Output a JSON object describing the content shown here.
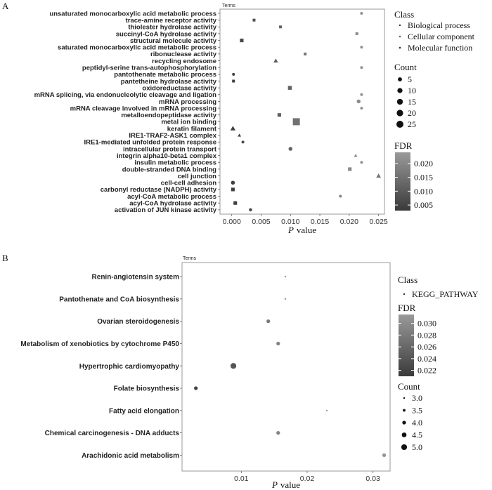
{
  "chart_data": [
    {
      "type": "scatter",
      "panel_label": "A",
      "title": "Terms",
      "xlabel_italic": "P",
      "xlabel_rest": "value",
      "xlim": [
        -0.002,
        0.026
      ],
      "xticks": [
        0.0,
        0.005,
        0.01,
        0.015,
        0.02,
        0.025
      ],
      "xtick_labels": [
        "0.000",
        "0.005",
        "0.010",
        "0.015",
        "0.020",
        "0.025"
      ],
      "categories": [
        "unsaturated monocarboxylic acid metabolic process",
        "trace-amine receptor activity",
        "thiolester hydrolase activity",
        "succinyl-CoA hydrolase activity",
        "structural molecule activity",
        "saturated monocarboxylic acid metabolic process",
        "ribonuclease activity",
        "recycling endosome",
        "peptidyl-serine trans-autophosphorylation",
        "pantothenate metabolic process",
        "pantetheine hydrolase activity",
        "oxidoreductase activity",
        "mRNA splicing, via endonucleolytic cleavage and ligation",
        "mRNA processing",
        "mRNA cleavage involved in mRNA processing",
        "metalloendopeptidase activity",
        "metal ion binding",
        "keratin filament",
        "IRE1-TRAF2-ASK1 complex",
        "IRE1-mediated unfolded protein response",
        "intracellular protein transport",
        "integrin alpha10-beta1 complex",
        "insulin metabolic process",
        "double-stranded DNA binding",
        "cell junction",
        "cell-cell adhesion",
        "carbonyl reductase (NADPH) activity",
        "acyl-CoA metabolic process",
        "acyl-CoA hydrolase activity",
        "activation of JUN kinase activity"
      ],
      "points": [
        {
          "term": "unsaturated monocarboxylic acid metabolic process",
          "p": 0.0221,
          "count": 1,
          "fdr": 0.022,
          "class": "Biological process"
        },
        {
          "term": "trace-amine receptor activity",
          "p": 0.0038,
          "count": 1,
          "fdr": 0.008,
          "class": "Molecular function"
        },
        {
          "term": "thiolester hydrolase activity",
          "p": 0.0083,
          "count": 1,
          "fdr": 0.012,
          "class": "Molecular function"
        },
        {
          "term": "succinyl-CoA hydrolase activity",
          "p": 0.0213,
          "count": 1,
          "fdr": 0.021,
          "class": "Molecular function"
        },
        {
          "term": "structural molecule activity",
          "p": 0.0017,
          "count": 3,
          "fdr": 0.006,
          "class": "Molecular function"
        },
        {
          "term": "saturated monocarboxylic acid metabolic process",
          "p": 0.0221,
          "count": 1,
          "fdr": 0.022,
          "class": "Biological process"
        },
        {
          "term": "ribonuclease activity",
          "p": 0.0125,
          "count": 1,
          "fdr": 0.016,
          "class": "Molecular function"
        },
        {
          "term": "recycling endosome",
          "p": 0.0075,
          "count": 3,
          "fdr": 0.01,
          "class": "Cellular component"
        },
        {
          "term": "peptidyl-serine trans-autophosphorylation",
          "p": 0.0221,
          "count": 1,
          "fdr": 0.022,
          "class": "Biological process"
        },
        {
          "term": "pantothenate metabolic process",
          "p": 0.0003,
          "count": 1,
          "fdr": 0.004,
          "class": "Biological process"
        },
        {
          "term": "pantetheine hydrolase activity",
          "p": 0.0003,
          "count": 1,
          "fdr": 0.004,
          "class": "Molecular function"
        },
        {
          "term": "oxidoreductase activity",
          "p": 0.0099,
          "count": 4,
          "fdr": 0.012,
          "class": "Molecular function"
        },
        {
          "term": "mRNA splicing, via endonucleolytic cleavage and ligation",
          "p": 0.0221,
          "count": 1,
          "fdr": 0.022,
          "class": "Biological process"
        },
        {
          "term": "mRNA processing",
          "p": 0.0216,
          "count": 4,
          "fdr": 0.021,
          "class": "Biological process"
        },
        {
          "term": "mRNA cleavage involved in mRNA processing",
          "p": 0.0221,
          "count": 1,
          "fdr": 0.022,
          "class": "Biological process"
        },
        {
          "term": "metalloendopeptidase activity",
          "p": 0.0081,
          "count": 3,
          "fdr": 0.011,
          "class": "Molecular function"
        },
        {
          "term": "metal ion binding",
          "p": 0.011,
          "count": 25,
          "fdr": 0.015,
          "class": "Molecular function"
        },
        {
          "term": "keratin filament",
          "p": 0.0002,
          "count": 5,
          "fdr": 0.004,
          "class": "Cellular component"
        },
        {
          "term": "IRE1-TRAF2-ASK1 complex",
          "p": 0.0013,
          "count": 1,
          "fdr": 0.005,
          "class": "Cellular component"
        },
        {
          "term": "IRE1-mediated unfolded protein response",
          "p": 0.0019,
          "count": 1,
          "fdr": 0.006,
          "class": "Biological process"
        },
        {
          "term": "intracellular protein transport",
          "p": 0.01,
          "count": 4,
          "fdr": 0.012,
          "class": "Biological process"
        },
        {
          "term": "integrin alpha10-beta1 complex",
          "p": 0.0211,
          "count": 1,
          "fdr": 0.021,
          "class": "Cellular component"
        },
        {
          "term": "insulin metabolic process",
          "p": 0.0221,
          "count": 1,
          "fdr": 0.022,
          "class": "Biological process"
        },
        {
          "term": "double-stranded DNA binding",
          "p": 0.0201,
          "count": 3,
          "fdr": 0.02,
          "class": "Molecular function"
        },
        {
          "term": "cell junction",
          "p": 0.025,
          "count": 4,
          "fdr": 0.016,
          "class": "Cellular component"
        },
        {
          "term": "cell-cell adhesion",
          "p": 0.0002,
          "count": 4,
          "fdr": 0.004,
          "class": "Biological process"
        },
        {
          "term": "carbonyl reductase (NADPH) activity",
          "p": 0.0002,
          "count": 3,
          "fdr": 0.004,
          "class": "Molecular function"
        },
        {
          "term": "acyl-CoA metabolic process",
          "p": 0.0185,
          "count": 1,
          "fdr": 0.019,
          "class": "Biological process"
        },
        {
          "term": "acyl-CoA hydrolase activity",
          "p": 0.0006,
          "count": 3,
          "fdr": 0.004,
          "class": "Molecular function"
        },
        {
          "term": "activation of JUN kinase activity",
          "p": 0.0032,
          "count": 2,
          "fdr": 0.007,
          "class": "Biological process"
        }
      ],
      "legend": {
        "class_title": "Class",
        "classes": [
          "Biological process",
          "Cellular component",
          "Molecular function"
        ],
        "count_title": "Count",
        "count_values": [
          5,
          10,
          15,
          20,
          25
        ],
        "count_labels": [
          "5",
          "10",
          "15",
          "20",
          "25"
        ],
        "fdr_title": "FDR",
        "fdr_range": [
          0.003,
          0.024
        ],
        "fdr_ticks": [
          0.005,
          0.01,
          0.015,
          0.02
        ],
        "fdr_labels": [
          "0.005",
          "0.010",
          "0.015",
          "0.020"
        ]
      }
    },
    {
      "type": "scatter",
      "panel_label": "B",
      "title": "Terms",
      "xlabel_italic": "P",
      "xlabel_rest": "value",
      "xlim": [
        0.001,
        0.0326
      ],
      "xticks": [
        0.01,
        0.02,
        0.03
      ],
      "xtick_labels": [
        "0.01",
        "0.02",
        "0.03"
      ],
      "categories": [
        "Renin-angiotensin system",
        "Pantothenate and CoA biosynthesis",
        "Ovarian steroidogenesis",
        "Metabolism of xenobiotics by cytochrome P450",
        "Hypertrophic cardiomyopathy",
        "Folate biosynthesis",
        "Fatty acid elongation",
        "Chemical carcinogenesis - DNA adducts",
        "Arachidonic acid metabolism"
      ],
      "points": [
        {
          "term": "Renin-angiotensin system",
          "p": 0.0167,
          "count": 3,
          "fdr": 0.031,
          "class": "KEGG_PATHWAY"
        },
        {
          "term": "Pantothenate and CoA biosynthesis",
          "p": 0.0167,
          "count": 3,
          "fdr": 0.031,
          "class": "KEGG_PATHWAY"
        },
        {
          "term": "Ovarian steroidogenesis",
          "p": 0.0141,
          "count": 4,
          "fdr": 0.028,
          "class": "KEGG_PATHWAY"
        },
        {
          "term": "Metabolism of xenobiotics by cytochrome P450",
          "p": 0.0156,
          "count": 4,
          "fdr": 0.029,
          "class": "KEGG_PATHWAY"
        },
        {
          "term": "Hypertrophic cardiomyopathy",
          "p": 0.0088,
          "count": 5,
          "fdr": 0.024,
          "class": "KEGG_PATHWAY"
        },
        {
          "term": "Folate biosynthesis",
          "p": 0.0031,
          "count": 4,
          "fdr": 0.022,
          "class": "KEGG_PATHWAY"
        },
        {
          "term": "Fatty acid elongation",
          "p": 0.023,
          "count": 3,
          "fdr": 0.032,
          "class": "KEGG_PATHWAY"
        },
        {
          "term": "Chemical carcinogenesis - DNA adducts",
          "p": 0.0156,
          "count": 4,
          "fdr": 0.029,
          "class": "KEGG_PATHWAY"
        },
        {
          "term": "Arachidonic acid metabolism",
          "p": 0.0317,
          "count": 4,
          "fdr": 0.031,
          "class": "KEGG_PATHWAY"
        }
      ],
      "legend": {
        "class_title": "Class",
        "classes": [
          "KEGG_PATHWAY"
        ],
        "fdr_title": "FDR",
        "fdr_range": [
          0.021,
          0.0315
        ],
        "fdr_ticks": [
          0.022,
          0.024,
          0.026,
          0.028,
          0.03
        ],
        "fdr_labels": [
          "0.022",
          "0.024",
          "0.026",
          "0.028",
          "0.030"
        ],
        "count_title": "Count",
        "count_values": [
          3.0,
          3.5,
          4.0,
          4.5,
          5.0
        ],
        "count_labels": [
          "3.0",
          "3.5",
          "4.0",
          "4.5",
          "5.0"
        ]
      }
    }
  ]
}
